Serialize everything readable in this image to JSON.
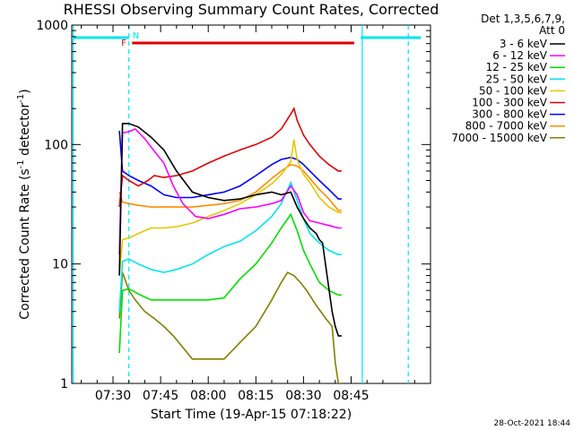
{
  "chart_data": {
    "type": "line",
    "title": "RHESSI Observing Summary Count Rates, Corrected",
    "xlabel": "Start Time (19-Apr-15 07:18:22)",
    "ylabel": "Corrected Count Rate (s",
    "ylabel_sup1": "-1",
    "ylabel_mid": " detector",
    "ylabel_sup2": "-1",
    "ylabel_end": ")",
    "y_scale": "log",
    "ylim": [
      1,
      1000
    ],
    "xlim_minutes": [
      437,
      550
    ],
    "x_ticks": [
      {
        "minute": 450,
        "label": "07:30"
      },
      {
        "minute": 465,
        "label": "07:45"
      },
      {
        "minute": 480,
        "label": "08:00"
      },
      {
        "minute": 495,
        "label": "08:15"
      },
      {
        "minute": 510,
        "label": "08:30"
      },
      {
        "minute": 525,
        "label": "08:45"
      }
    ],
    "y_ticks": [
      {
        "value": 1,
        "label": "1"
      },
      {
        "value": 10,
        "label": "10"
      },
      {
        "value": 100,
        "label": "100"
      },
      {
        "value": 1000,
        "label": "1000"
      }
    ],
    "legend": {
      "header": [
        "Det 1,3,5,6,7,9,",
        "Att 0"
      ],
      "placement": "right"
    },
    "timestamp": "28-Oct-2021 18:44",
    "annotations": {
      "flag_F": "F",
      "flag_N": "N",
      "flag_F_color": "#e00000",
      "flag_N_color": "#00e5ee",
      "night_color": "#00e5ee",
      "night_bars": [
        [
          437,
          455
        ],
        [
          528,
          547
        ]
      ],
      "night_dash_lines": [
        455,
        543
      ],
      "night_solid_lines": [
        437.5,
        528.5
      ],
      "flare_bar": [
        456,
        526
      ]
    },
    "series": [
      {
        "name": "3 - 6 keV",
        "color": "#000000",
        "x": [
          452,
          453,
          455,
          458,
          462,
          466,
          470,
          475,
          480,
          485,
          490,
          495,
          500,
          503,
          506,
          508,
          510,
          512,
          514,
          515,
          516,
          519,
          520,
          521,
          522
        ],
        "y": [
          8,
          150,
          150,
          140,
          115,
          90,
          60,
          40,
          36,
          34,
          35,
          38,
          40,
          38,
          40,
          30,
          24,
          20,
          18,
          16,
          15,
          4,
          3,
          2.5,
          2.5
        ]
      },
      {
        "name": "6 - 12 keV",
        "color": "#ff00ff",
        "x": [
          452,
          453,
          455,
          457,
          460,
          463,
          466,
          469,
          472,
          476,
          480,
          485,
          490,
          495,
          500,
          503,
          506,
          508,
          510,
          512,
          515,
          518,
          521,
          522
        ],
        "y": [
          12,
          125,
          128,
          135,
          112,
          88,
          70,
          45,
          32,
          25,
          24,
          26,
          29,
          30,
          32,
          34,
          45,
          38,
          27,
          23,
          22,
          21,
          20,
          20
        ]
      },
      {
        "name": "12 - 25 keV",
        "color": "#00e000",
        "x": [
          452,
          453,
          455,
          458,
          462,
          466,
          470,
          475,
          480,
          485,
          490,
          495,
          500,
          503,
          506,
          508,
          510,
          512,
          515,
          518,
          521,
          522
        ],
        "y": [
          1.8,
          6,
          6.2,
          5.6,
          5,
          5,
          5,
          5,
          5,
          5.2,
          7.5,
          10,
          15,
          20,
          26,
          19,
          13,
          10,
          7,
          6,
          5.5,
          5.5
        ]
      },
      {
        "name": "25 - 50 keV",
        "color": "#00e5ee",
        "x": [
          452,
          453,
          455,
          458,
          462,
          466,
          470,
          475,
          480,
          485,
          490,
          495,
          500,
          503,
          506,
          508,
          510,
          512,
          515,
          518,
          521,
          522
        ],
        "y": [
          4,
          10.5,
          11,
          10,
          9,
          8.5,
          9,
          10,
          12,
          14,
          15.5,
          19,
          25,
          32,
          48,
          34,
          24,
          18,
          15,
          13,
          12,
          12
        ]
      },
      {
        "name": "50 - 100 keV",
        "color": "#e6c800",
        "x": [
          452,
          453,
          455,
          458,
          462,
          466,
          470,
          475,
          480,
          485,
          490,
          495,
          500,
          503,
          506,
          507,
          508,
          510,
          512,
          515,
          518,
          521,
          522
        ],
        "y": [
          8,
          16,
          16.5,
          18,
          20,
          20,
          20.5,
          22,
          25,
          28,
          32,
          38,
          47,
          56,
          72,
          110,
          75,
          56,
          48,
          36,
          30,
          27,
          27
        ]
      },
      {
        "name": "100 - 300 keV",
        "color": "#e00000",
        "x": [
          452,
          453,
          455,
          458,
          461,
          463,
          466,
          470,
          475,
          480,
          485,
          490,
          495,
          500,
          503,
          506,
          507,
          508,
          510,
          512,
          515,
          518,
          521,
          522
        ],
        "y": [
          30,
          55,
          50,
          45,
          50,
          55,
          53,
          55,
          60,
          70,
          80,
          90,
          100,
          115,
          135,
          180,
          200,
          160,
          120,
          100,
          80,
          68,
          60,
          60
        ]
      },
      {
        "name": "300 - 800 keV",
        "color": "#0000ff",
        "x": [
          452,
          453,
          455,
          458,
          462,
          466,
          470,
          475,
          480,
          485,
          490,
          495,
          500,
          503,
          506,
          508,
          510,
          512,
          515,
          518,
          521,
          522
        ],
        "y": [
          130,
          60,
          55,
          50,
          45,
          38,
          36,
          36,
          38,
          40,
          45,
          55,
          68,
          75,
          78,
          75,
          68,
          60,
          50,
          42,
          35,
          35
        ]
      },
      {
        "name": "800 - 7000 keV",
        "color": "#ff8c00",
        "x": [
          452,
          453,
          455,
          458,
          462,
          466,
          470,
          475,
          480,
          485,
          490,
          495,
          500,
          503,
          506,
          508,
          510,
          512,
          515,
          518,
          521,
          522
        ],
        "y": [
          40,
          33,
          32,
          31,
          30,
          30,
          30,
          30,
          31,
          32,
          34,
          40,
          52,
          60,
          68,
          66,
          60,
          52,
          42,
          35,
          28,
          28
        ]
      },
      {
        "name": "7000 - 15000 keV",
        "color": "#808000",
        "x": [
          452,
          453,
          455,
          457,
          460,
          463,
          466,
          469,
          472,
          475,
          480,
          485,
          490,
          495,
          500,
          503,
          505,
          507,
          509,
          511,
          514,
          517,
          519,
          520,
          521,
          522
        ],
        "y": [
          3.5,
          8.5,
          6,
          5,
          4,
          3.5,
          3,
          2.5,
          2,
          1.6,
          1.6,
          1.6,
          2.2,
          3,
          5,
          7,
          8.5,
          8,
          7,
          6,
          4.5,
          3.5,
          3,
          1.5,
          1,
          1
        ]
      }
    ]
  }
}
